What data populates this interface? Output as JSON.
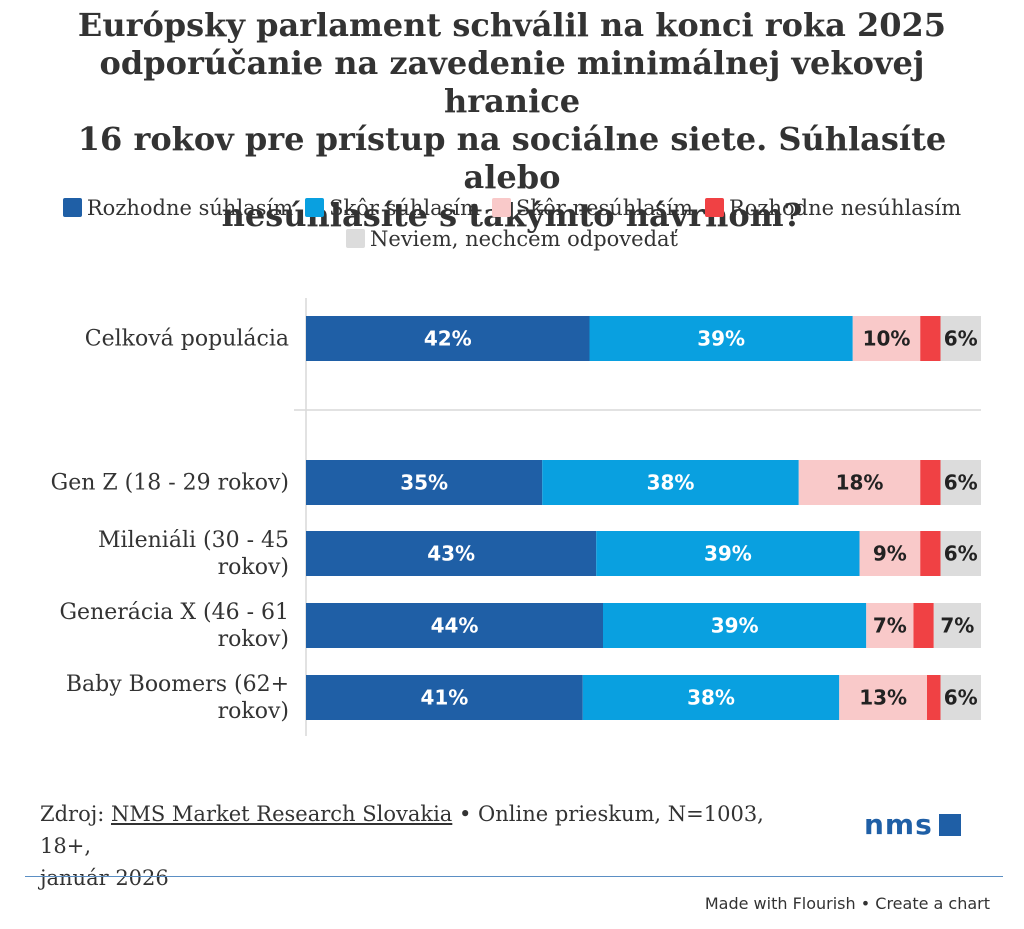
{
  "chart_data": {
    "type": "stacked-bar-horizontal",
    "title": "Európsky parlament schválil na konci roka 2025 odporúčanie na zavedenie minimálnej vekovej hranice 16 rokov pre prístup na sociálne siete. Súhlasíte alebo nesúhlasíte s takýmto návrhom?",
    "title_lines": [
      "Európsky parlament schválil na konci roka 2025",
      "odporúčanie na zavedenie minimálnej vekovej hranice",
      "16 rokov pre prístup na sociálne siete. Súhlasíte alebo",
      "nesúhlasíte s takýmto návrhom?"
    ],
    "unit": "%",
    "xlim": [
      0,
      100
    ],
    "series": [
      {
        "name": "Rozhodne súhlasím",
        "color": "#1f5fa6",
        "label_color": "#ffffff",
        "values": [
          42,
          35,
          43,
          44,
          41
        ]
      },
      {
        "name": "Skôr súhlasím",
        "color": "#09a0e0",
        "label_color": "#ffffff",
        "values": [
          39,
          38,
          39,
          39,
          38
        ]
      },
      {
        "name": "Skôr nesúhlasím",
        "color": "#f9c9c9",
        "label_color": "#222222",
        "values": [
          10,
          18,
          9,
          7,
          13
        ]
      },
      {
        "name": "Rozhodne nesúhlasím",
        "color": "#f04144",
        "label_color": "#222222",
        "values": [
          3,
          3,
          3,
          3,
          2
        ]
      },
      {
        "name": "Neviem, nechcem odpovedať",
        "color": "#dcdcdc",
        "label_color": "#222222",
        "values": [
          6,
          6,
          6,
          7,
          6
        ]
      }
    ],
    "categories": [
      {
        "name": "Celková populácia",
        "lines": [
          "Celková populácia"
        ]
      },
      {
        "name": "Gen Z (18 - 29 rokov)",
        "lines": [
          "Gen Z (18 - 29 rokov)"
        ]
      },
      {
        "name": "Mileniáli (30 - 45 rokov)",
        "lines": [
          "Mileniáli (30 - 45",
          "rokov)"
        ]
      },
      {
        "name": "Generácia X (46 - 61 rokov)",
        "lines": [
          "Generácia X (46 - 61",
          "rokov)"
        ]
      },
      {
        "name": "Baby Boomers (62+ rokov)",
        "lines": [
          "Baby Boomers (62+",
          "rokov)"
        ]
      }
    ],
    "groups": [
      [
        0
      ],
      [
        1,
        2,
        3,
        4
      ]
    ]
  },
  "source": {
    "prefix": "Zdroj: ",
    "link_text": "NMS Market Research Slovakia",
    "suffix": " • Online prieskum, N=1003, 18+,",
    "line2": "január 2026"
  },
  "logo": {
    "text": "nms"
  },
  "footer": {
    "made_with": "Made with Flourish",
    "separator": " • ",
    "create": "Create a chart"
  }
}
